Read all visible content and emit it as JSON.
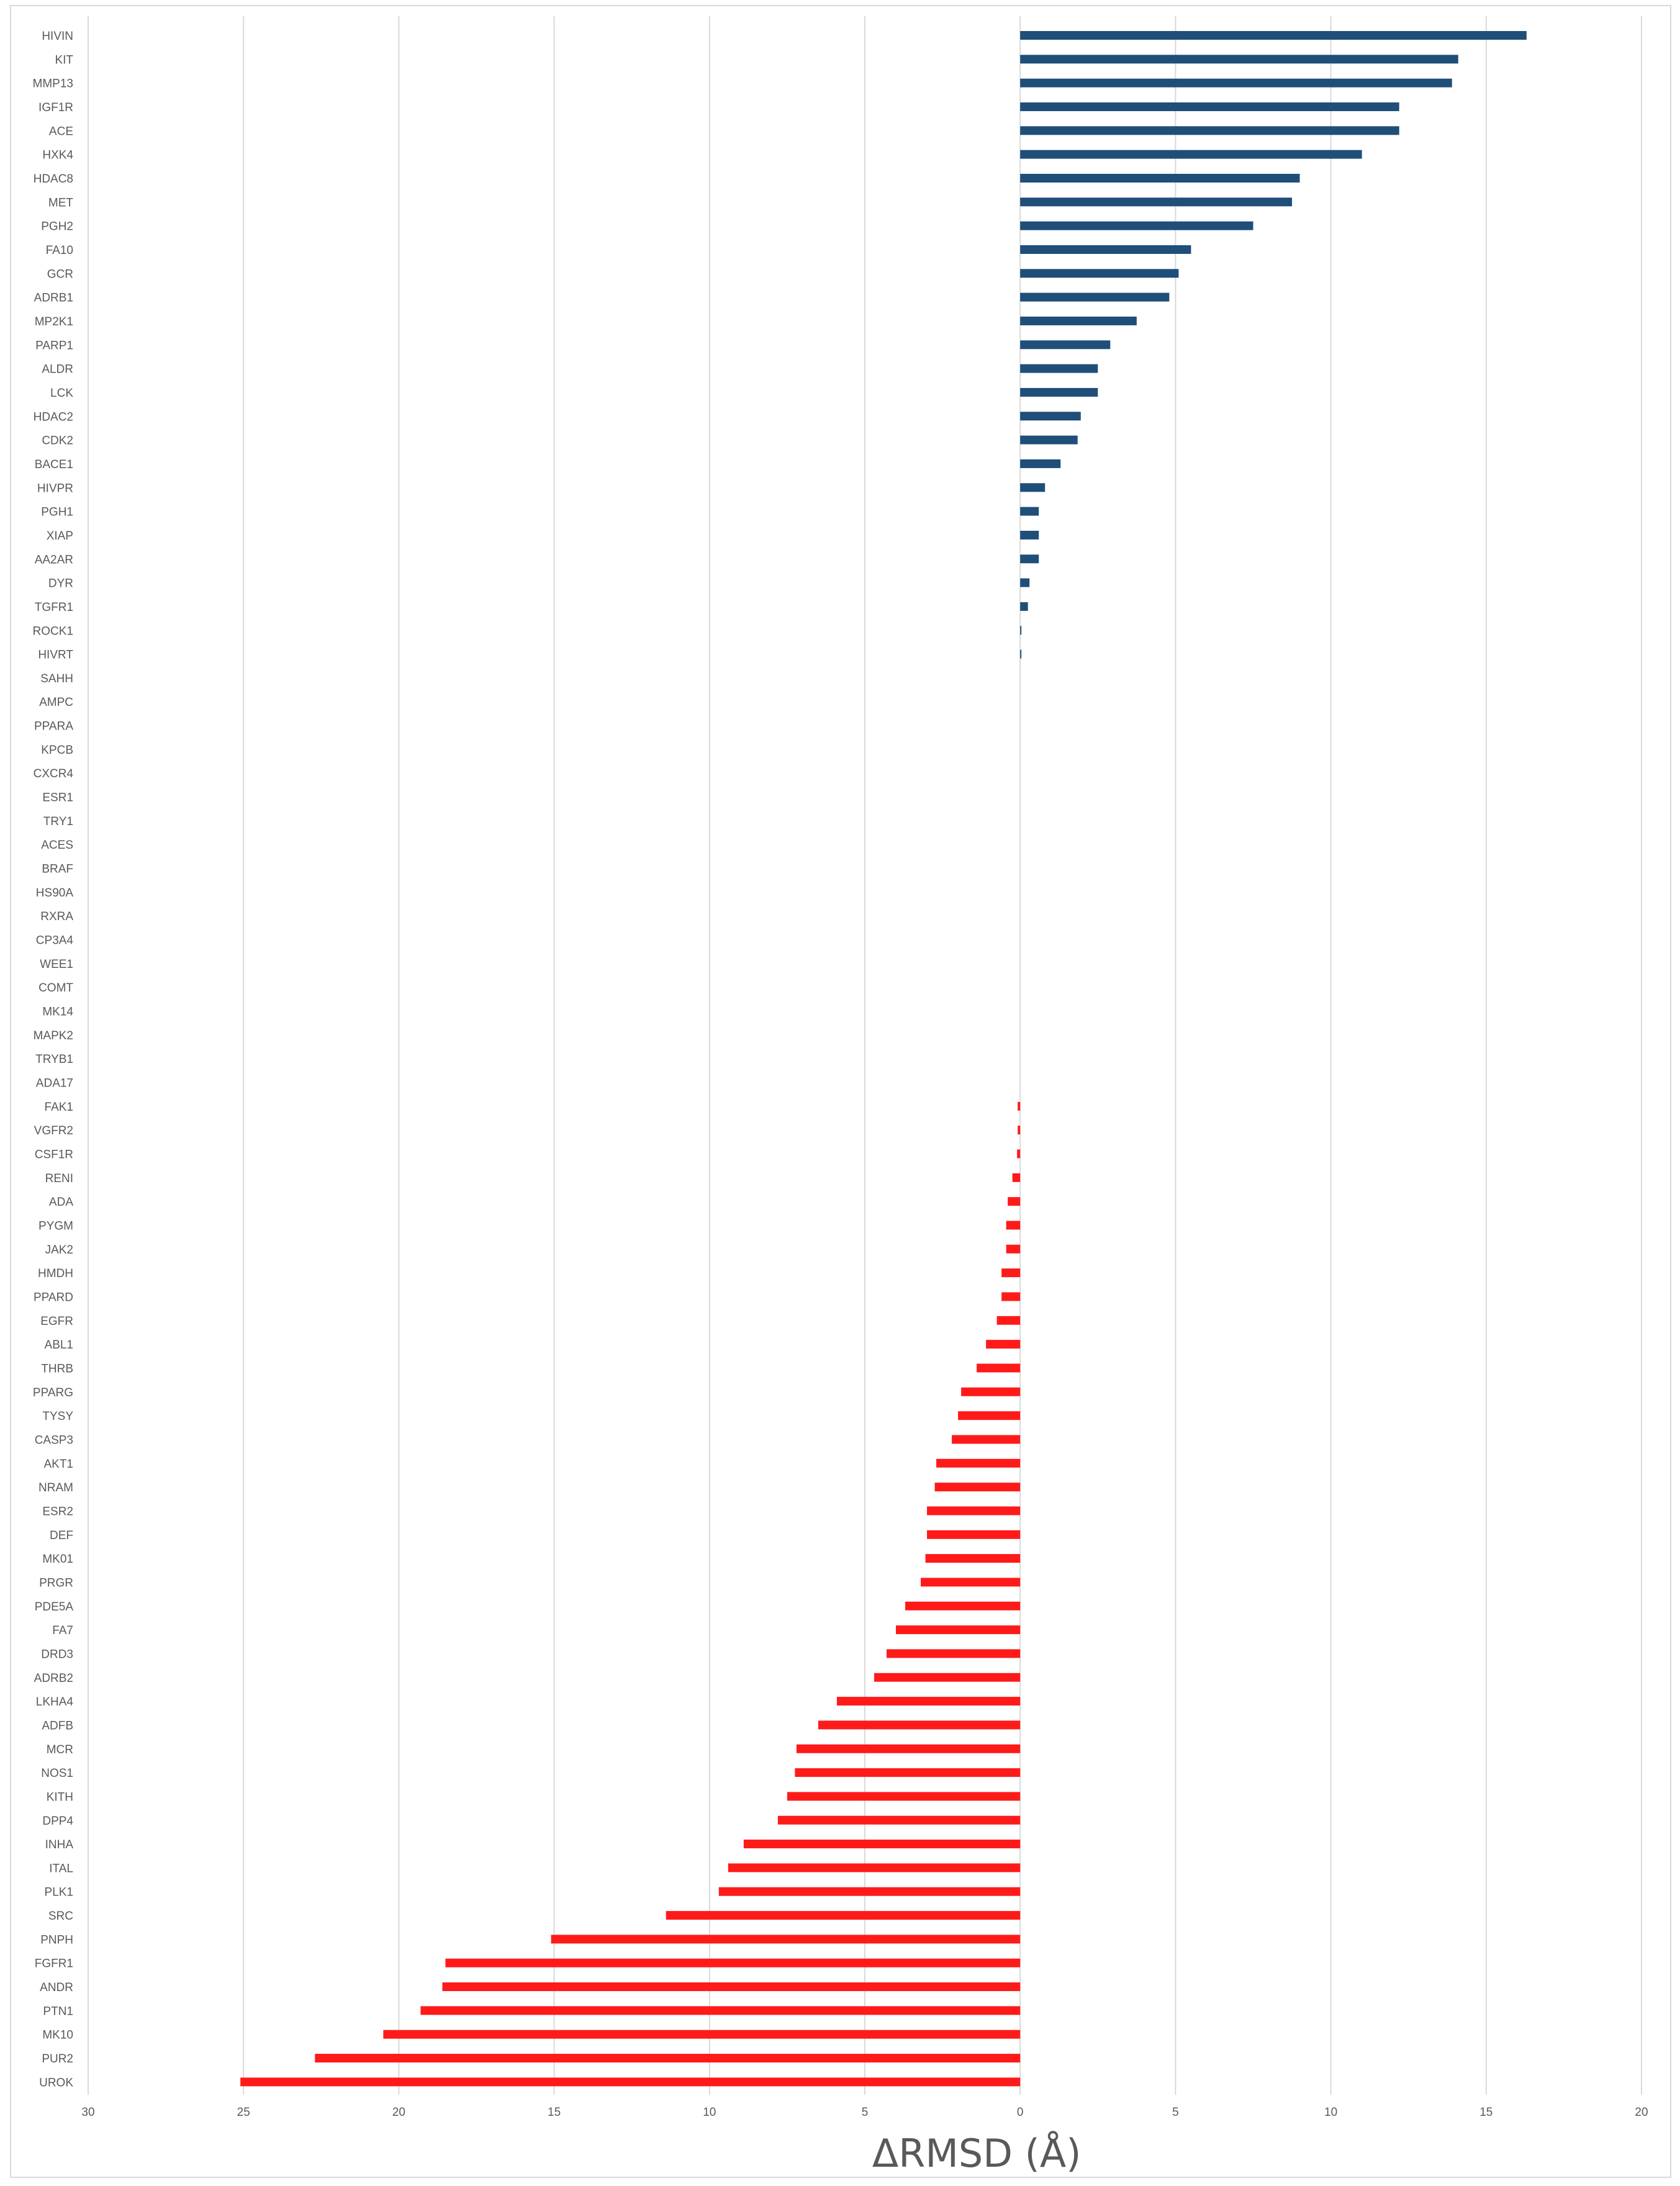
{
  "chart_data": {
    "type": "bar",
    "orientation": "horizontal",
    "title": "",
    "xlabel": "ΔRMSD (Å)",
    "ylabel": "",
    "xlim": [
      -30,
      20
    ],
    "xticks": [
      -30,
      -25,
      -20,
      -15,
      -10,
      -5,
      0,
      5,
      10,
      15,
      20
    ],
    "xtick_labels": [
      "30",
      "25",
      "20",
      "15",
      "10",
      "5",
      "0",
      "5",
      "10",
      "15",
      "20"
    ],
    "grid": "vertical",
    "legend": "none",
    "colors": {
      "positive": "#1f4e79",
      "negative": "#ff1a1a",
      "grid": "#d9d9d9",
      "text": "#595959"
    },
    "categories": [
      "HIVIN",
      "KIT",
      "MMP13",
      "IGF1R",
      "ACE",
      "HXK4",
      "HDAC8",
      "MET",
      "PGH2",
      "FA10",
      "GCR",
      "ADRB1",
      "MP2K1",
      "PARP1",
      "ALDR",
      "LCK",
      "HDAC2",
      "CDK2",
      "BACE1",
      "HIVPR",
      "PGH1",
      "XIAP",
      "AA2AR",
      "DYR",
      "TGFR1",
      "ROCK1",
      "HIVRT",
      "SAHH",
      "AMPC",
      "PPARA",
      "KPCB",
      "CXCR4",
      "ESR1",
      "TRY1",
      "ACES",
      "BRAF",
      "HS90A",
      "RXRA",
      "CP3A4",
      "WEE1",
      "COMT",
      "MK14",
      "MAPK2",
      "TRYB1",
      "ADA17",
      "FAK1",
      "VGFR2",
      "CSF1R",
      "RENI",
      "ADA",
      "PYGM",
      "JAK2",
      "HMDH",
      "PPARD",
      "EGFR",
      "ABL1",
      "THRB",
      "PPARG",
      "TYSY",
      "CASP3",
      "AKT1",
      "NRAM",
      "ESR2",
      "DEF",
      "MK01",
      "PRGR",
      "PDE5A",
      "FA7",
      "DRD3",
      "ADRB2",
      "LKHA4",
      "ADFB",
      "MCR",
      "NOS1",
      "KITH",
      "DPP4",
      "INHA",
      "ITAL",
      "PLK1",
      "SRC",
      "PNPH",
      "FGFR1",
      "ANDR",
      "PTN1",
      "MK10",
      "PUR2",
      "UROK"
    ],
    "values": [
      16.3,
      14.1,
      13.9,
      12.2,
      12.2,
      11.0,
      9.0,
      8.75,
      7.5,
      5.5,
      5.1,
      4.8,
      3.75,
      2.9,
      2.5,
      2.5,
      1.95,
      1.85,
      1.3,
      0.8,
      0.6,
      0.6,
      0.6,
      0.3,
      0.25,
      0.02,
      0.02,
      0,
      0,
      0,
      0,
      0,
      0,
      0,
      0,
      0,
      0,
      0,
      0,
      0,
      0,
      0,
      0,
      0,
      0,
      -0.08,
      -0.08,
      -0.1,
      -0.25,
      -0.4,
      -0.45,
      -0.45,
      -0.6,
      -0.6,
      -0.75,
      -1.1,
      -1.4,
      -1.9,
      -2.0,
      -2.2,
      -2.7,
      -2.75,
      -3.0,
      -3.0,
      -3.05,
      -3.2,
      -3.7,
      -4.0,
      -4.3,
      -4.7,
      -5.9,
      -6.5,
      -7.2,
      -7.25,
      -7.5,
      -7.8,
      -8.9,
      -9.4,
      -9.7,
      -11.4,
      -15.1,
      -18.5,
      -18.6,
      -19.3,
      -20.5,
      -22.7,
      -25.1
    ]
  }
}
